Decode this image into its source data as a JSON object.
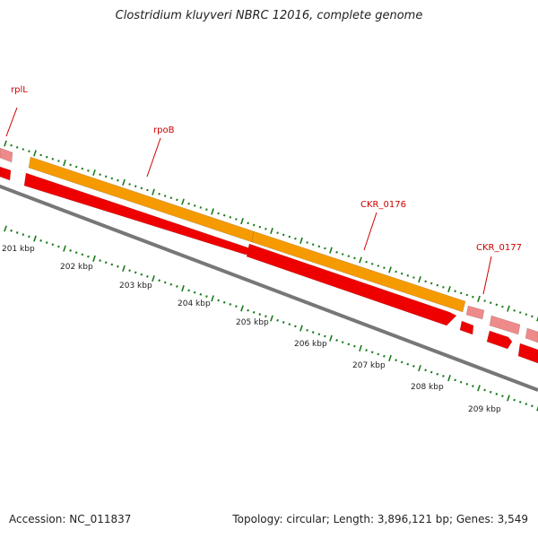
{
  "map": {
    "title": "Clostridium kluyveri NBRC 12016, complete genome",
    "accession": "Accession: NC_011837",
    "summary": "Topology: circular; Length: 3,896,121 bp; Genes: 3,549"
  },
  "scale_labels": [
    "201 kbp",
    "202 kbp",
    "203 kbp",
    "204 kbp",
    "205 kbp",
    "206 kbp",
    "207 kbp",
    "208 kbp",
    "209 kbp"
  ],
  "gene_labels": [
    "rplL",
    "rpoB",
    "CKR_0176",
    "CKR_0177"
  ],
  "colors": {
    "backbone": "#777777",
    "cds": "#ee0000",
    "gene": "#f59a00",
    "rna": "#ee8a8a",
    "tick": "#1a7a1a",
    "label": "#cc0000"
  }
}
